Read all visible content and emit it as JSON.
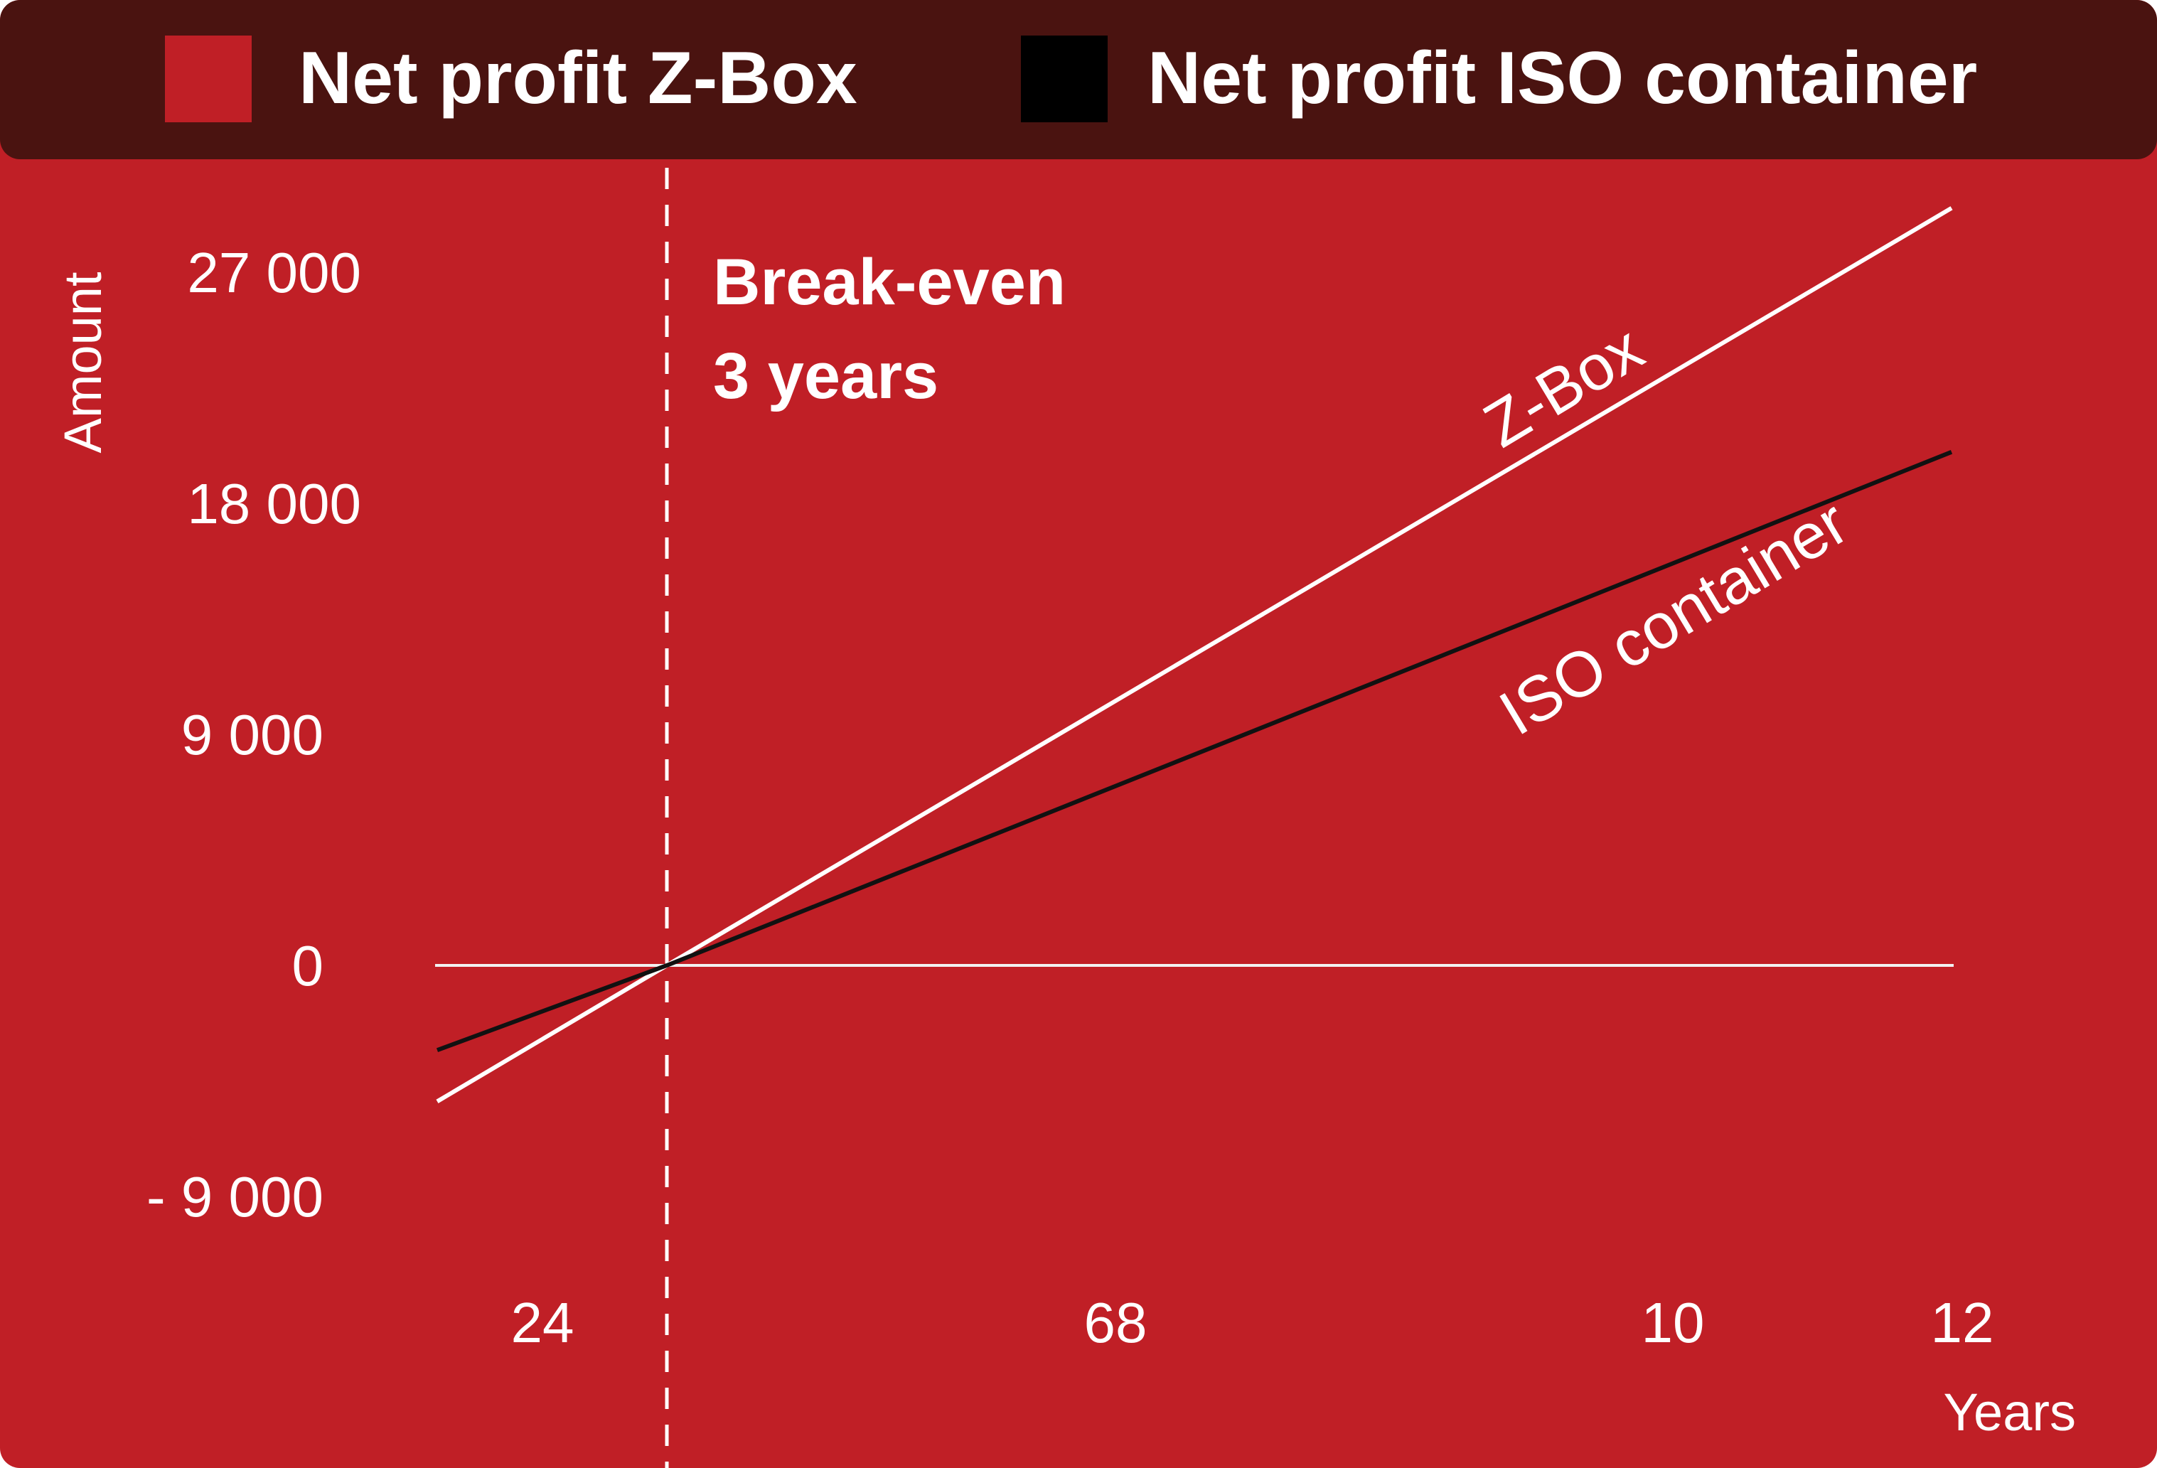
{
  "colors": {
    "background": "#c01f26",
    "legend_bar": "#4a1310",
    "zbox_swatch": "#c01f26",
    "iso_swatch": "#000000",
    "zbox_line": "#ffffff",
    "iso_line": "#111111",
    "text": "#ffffff"
  },
  "legend": {
    "items": [
      {
        "label": "Net profit Z-Box"
      },
      {
        "label": "Net profit ISO container"
      }
    ]
  },
  "chart_data": {
    "type": "line",
    "title": "",
    "xlabel": "Years",
    "ylabel": "Amount",
    "x_ticks": [
      "24",
      "68",
      "10",
      "12"
    ],
    "x_tick_values": [
      2,
      6,
      10,
      12
    ],
    "y_ticks": [
      "27 000",
      "18 000",
      "9 000",
      "0",
      "- 9 000"
    ],
    "y_tick_values": [
      27000,
      18000,
      9000,
      0,
      -9000
    ],
    "xlim": [
      1,
      12
    ],
    "ylim": [
      -9000,
      27000
    ],
    "grid": false,
    "legend_position": "top",
    "series": [
      {
        "name": "Net profit Z-Box",
        "x": [
          2.3,
          3,
          12.2
        ],
        "y": [
          -5300,
          0,
          29500
        ],
        "label": "Z-Box",
        "color": "#ffffff"
      },
      {
        "name": "Net profit ISO container",
        "x": [
          2.3,
          3,
          12.2
        ],
        "y": [
          -3300,
          0,
          20000
        ],
        "label": "ISO container",
        "color": "#111111"
      }
    ],
    "annotations": [
      {
        "text_lines": [
          "Break-even",
          "3 years"
        ],
        "x": 3,
        "style": "dashed vertical line"
      }
    ]
  }
}
